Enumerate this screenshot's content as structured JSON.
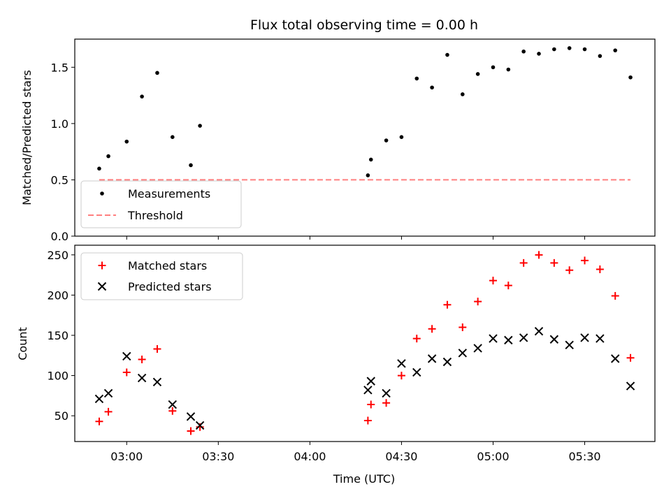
{
  "colors": {
    "measurements": "#000000",
    "threshold": "#ff7f7f",
    "matched": "#ff0000",
    "predicted": "#000000"
  },
  "chart_data": [
    {
      "type": "scatter",
      "title": "Flux total observing time = 0.00 h",
      "ylabel": "Matched/Predicted stars",
      "xlabel": "",
      "ylim": [
        0,
        1.75
      ],
      "yticks": [
        "0.0",
        "0.5",
        "1.0",
        "1.5"
      ],
      "legend_placement": "lower-left",
      "series": [
        {
          "name": "Measurements",
          "marker": "dot",
          "points": [
            [
              "02:51",
              0.6
            ],
            [
              "02:54",
              0.71
            ],
            [
              "03:00",
              0.84
            ],
            [
              "03:05",
              1.24
            ],
            [
              "03:10",
              1.45
            ],
            [
              "03:15",
              0.88
            ],
            [
              "03:21",
              0.63
            ],
            [
              "03:24",
              0.98
            ],
            [
              "04:19",
              0.54
            ],
            [
              "04:20",
              0.68
            ],
            [
              "04:25",
              0.85
            ],
            [
              "04:30",
              0.88
            ],
            [
              "04:35",
              1.4
            ],
            [
              "04:40",
              1.32
            ],
            [
              "04:45",
              1.61
            ],
            [
              "04:50",
              1.26
            ],
            [
              "04:55",
              1.44
            ],
            [
              "05:00",
              1.5
            ],
            [
              "05:05",
              1.48
            ],
            [
              "05:10",
              1.64
            ],
            [
              "05:15",
              1.62
            ],
            [
              "05:20",
              1.66
            ],
            [
              "05:25",
              1.67
            ],
            [
              "05:30",
              1.66
            ],
            [
              "05:35",
              1.6
            ],
            [
              "05:40",
              1.65
            ],
            [
              "05:45",
              1.41
            ]
          ]
        },
        {
          "name": "Threshold",
          "marker": "dashed-line",
          "points": [
            [
              "02:51",
              0.5
            ],
            [
              "05:45",
              0.5
            ]
          ]
        }
      ]
    },
    {
      "type": "scatter",
      "title": "",
      "ylabel": "Count",
      "xlabel": "Time (UTC)",
      "ylim": [
        18,
        262
      ],
      "yticks": [
        "50",
        "100",
        "150",
        "200",
        "250"
      ],
      "xticks": [
        "03:00",
        "03:30",
        "04:00",
        "04:30",
        "05:00",
        "05:30"
      ],
      "xlim": [
        "02:43",
        "05:53"
      ],
      "legend_placement": "upper-left",
      "series": [
        {
          "name": "Matched stars",
          "marker": "plus",
          "points": [
            [
              "02:51",
              43
            ],
            [
              "02:54",
              55
            ],
            [
              "03:00",
              104
            ],
            [
              "03:05",
              120
            ],
            [
              "03:10",
              133
            ],
            [
              "03:15",
              56
            ],
            [
              "03:21",
              31
            ],
            [
              "03:24",
              36
            ],
            [
              "04:19",
              44
            ],
            [
              "04:20",
              64
            ],
            [
              "04:25",
              66
            ],
            [
              "04:30",
              100
            ],
            [
              "04:35",
              146
            ],
            [
              "04:40",
              158
            ],
            [
              "04:45",
              188
            ],
            [
              "04:50",
              160
            ],
            [
              "04:55",
              192
            ],
            [
              "05:00",
              218
            ],
            [
              "05:05",
              212
            ],
            [
              "05:10",
              240
            ],
            [
              "05:15",
              250
            ],
            [
              "05:20",
              240
            ],
            [
              "05:25",
              231
            ],
            [
              "05:30",
              243
            ],
            [
              "05:35",
              232
            ],
            [
              "05:40",
              199
            ],
            [
              "05:45",
              122
            ]
          ]
        },
        {
          "name": "Predicted stars",
          "marker": "x",
          "points": [
            [
              "02:51",
              71
            ],
            [
              "02:54",
              78
            ],
            [
              "03:00",
              124
            ],
            [
              "03:05",
              97
            ],
            [
              "03:10",
              92
            ],
            [
              "03:15",
              64
            ],
            [
              "03:21",
              49
            ],
            [
              "03:24",
              38
            ],
            [
              "04:19",
              82
            ],
            [
              "04:20",
              93
            ],
            [
              "04:25",
              78
            ],
            [
              "04:30",
              115
            ],
            [
              "04:35",
              104
            ],
            [
              "04:40",
              121
            ],
            [
              "04:45",
              117
            ],
            [
              "04:50",
              128
            ],
            [
              "04:55",
              134
            ],
            [
              "05:00",
              146
            ],
            [
              "05:05",
              144
            ],
            [
              "05:10",
              147
            ],
            [
              "05:15",
              155
            ],
            [
              "05:20",
              145
            ],
            [
              "05:25",
              138
            ],
            [
              "05:30",
              147
            ],
            [
              "05:35",
              146
            ],
            [
              "05:40",
              121
            ],
            [
              "05:45",
              87
            ]
          ]
        }
      ]
    }
  ]
}
